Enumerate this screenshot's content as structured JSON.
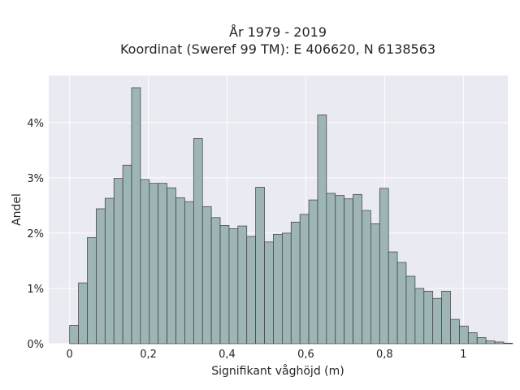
{
  "chart_data": {
    "type": "bar",
    "title_lines": [
      "År 1979 - 2019",
      "Koordinat (Sweref 99 TM): E 406620, N 6138563"
    ],
    "xlabel": "Signifikant våghöjd (m)",
    "ylabel": "Andel",
    "x_ticks": [
      {
        "value": 0,
        "label": "0"
      },
      {
        "value": 0.2,
        "label": "0,2"
      },
      {
        "value": 0.4,
        "label": "0,4"
      },
      {
        "value": 0.6,
        "label": "0,6"
      },
      {
        "value": 0.8,
        "label": "0,8"
      },
      {
        "value": 1.0,
        "label": "1"
      }
    ],
    "y_ticks": [
      {
        "value": 0,
        "label": "0%"
      },
      {
        "value": 1,
        "label": "1%"
      },
      {
        "value": 2,
        "label": "2%"
      },
      {
        "value": 3,
        "label": "3%"
      },
      {
        "value": 4,
        "label": "4%"
      }
    ],
    "xlim": [
      -0.053,
      1.113
    ],
    "ylim": [
      0,
      4.85
    ],
    "bin_start": 0,
    "bin_width": 0.0225,
    "values": [
      0.33,
      1.1,
      1.92,
      2.44,
      2.63,
      2.99,
      3.23,
      4.63,
      2.97,
      2.9,
      2.9,
      2.82,
      2.64,
      2.57,
      3.71,
      2.48,
      2.28,
      2.14,
      2.08,
      2.13,
      1.94,
      2.83,
      1.84,
      1.98,
      2.0,
      2.2,
      2.34,
      2.6,
      4.14,
      2.72,
      2.68,
      2.62,
      2.7,
      2.41,
      2.17,
      2.81,
      1.66,
      1.47,
      1.22,
      1.0,
      0.95,
      0.82,
      0.95,
      0.44,
      0.32,
      0.2,
      0.11,
      0.05,
      0.03,
      0.01
    ],
    "grid": true,
    "colors": {
      "bar_fill": "#9eb5b5",
      "bar_edge": "#3a3a3a",
      "plot_bg": "#eaeaf2",
      "grid": "#ffffff"
    }
  }
}
